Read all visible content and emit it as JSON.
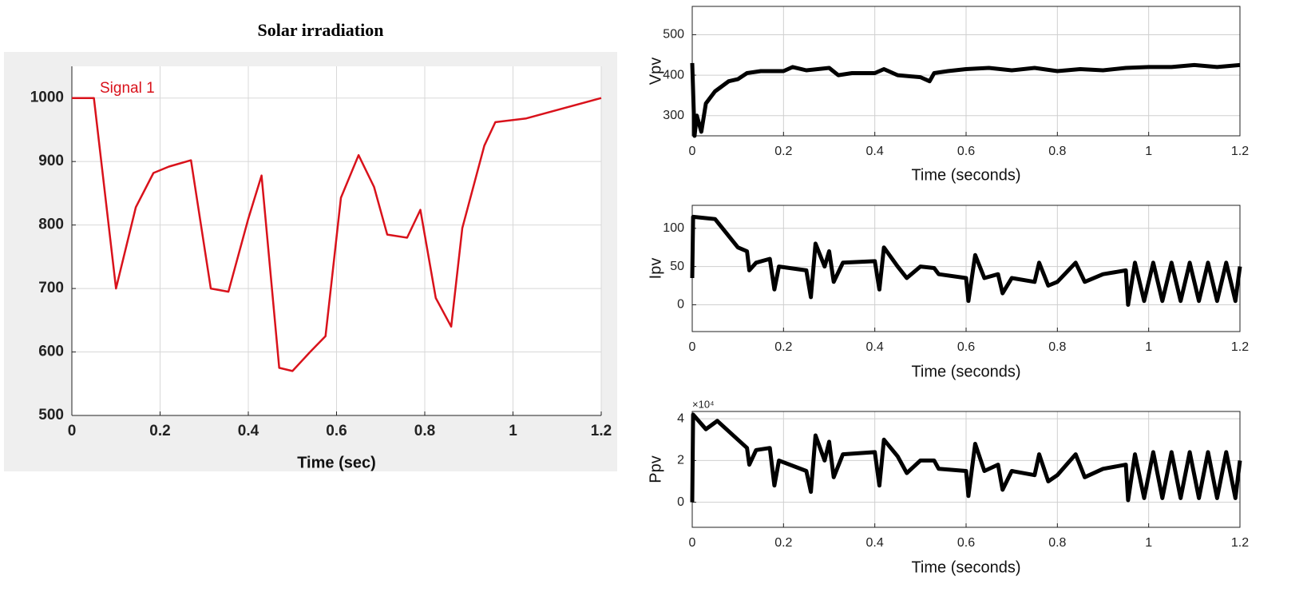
{
  "chart_data": [
    {
      "type": "line",
      "title": "Solar irradiation",
      "xlabel": "Time (sec)",
      "x": [
        0,
        0.05,
        0.1,
        0.145,
        0.185,
        0.22,
        0.27,
        0.315,
        0.355,
        0.4,
        0.43,
        0.47,
        0.5,
        0.54,
        0.575,
        0.61,
        0.65,
        0.685,
        0.715,
        0.76,
        0.79,
        0.825,
        0.86,
        0.885,
        0.935,
        0.96,
        1.03,
        1.2
      ],
      "series": [
        {
          "name": "Signal 1",
          "color": "#d9121b",
          "values": [
            1000,
            1000,
            700,
            828,
            882,
            892,
            902,
            700,
            695,
            810,
            878,
            575,
            570,
            600,
            625,
            843,
            910,
            860,
            785,
            780,
            824,
            685,
            640,
            795,
            925,
            962,
            968,
            1000
          ]
        }
      ],
      "xlim": [
        0,
        1.2
      ],
      "xticks": [
        0,
        0.2,
        0.4,
        0.6,
        0.8,
        1,
        1.2
      ],
      "ylim": [
        500,
        1050
      ],
      "yticks": [
        500,
        600,
        700,
        800,
        900,
        1000
      ],
      "grid": true
    },
    {
      "type": "line",
      "ylabel": "Vpv",
      "xlabel": "Time (seconds)",
      "x": [
        0,
        0.005,
        0.01,
        0.02,
        0.03,
        0.05,
        0.08,
        0.1,
        0.12,
        0.15,
        0.2,
        0.22,
        0.25,
        0.3,
        0.32,
        0.35,
        0.4,
        0.42,
        0.45,
        0.5,
        0.52,
        0.53,
        0.56,
        0.6,
        0.65,
        0.7,
        0.75,
        0.8,
        0.85,
        0.9,
        0.95,
        1.0,
        1.05,
        1.1,
        1.15,
        1.2
      ],
      "series": [
        {
          "color": "#000000",
          "values": [
            430,
            250,
            300,
            260,
            330,
            360,
            385,
            390,
            405,
            410,
            410,
            420,
            412,
            418,
            400,
            405,
            405,
            415,
            400,
            395,
            385,
            405,
            410,
            415,
            418,
            412,
            418,
            410,
            415,
            412,
            418,
            420,
            420,
            425,
            420,
            425
          ]
        }
      ],
      "xlim": [
        0,
        1.2
      ],
      "xticks": [
        0,
        0.2,
        0.4,
        0.6,
        0.8,
        1,
        1.2
      ],
      "ylim": [
        250,
        570
      ],
      "yticks": [
        300,
        400,
        500
      ],
      "grid": true
    },
    {
      "type": "line",
      "ylabel": "Ipv",
      "xlabel": "Time (seconds)",
      "x": [
        0,
        0.002,
        0.05,
        0.1,
        0.12,
        0.125,
        0.14,
        0.17,
        0.18,
        0.19,
        0.25,
        0.26,
        0.27,
        0.29,
        0.3,
        0.31,
        0.33,
        0.4,
        0.41,
        0.42,
        0.45,
        0.47,
        0.5,
        0.53,
        0.54,
        0.6,
        0.605,
        0.62,
        0.64,
        0.67,
        0.68,
        0.7,
        0.75,
        0.76,
        0.78,
        0.8,
        0.84,
        0.86,
        0.9,
        0.95,
        0.955,
        0.97,
        0.99,
        1.01,
        1.03,
        1.05,
        1.07,
        1.09,
        1.11,
        1.13,
        1.15,
        1.17,
        1.19,
        1.2
      ],
      "series": [
        {
          "color": "#000000",
          "values": [
            35,
            115,
            112,
            75,
            70,
            45,
            55,
            60,
            20,
            50,
            45,
            10,
            80,
            50,
            70,
            30,
            55,
            57,
            20,
            75,
            50,
            35,
            50,
            48,
            40,
            35,
            5,
            65,
            35,
            40,
            15,
            35,
            30,
            55,
            25,
            30,
            55,
            30,
            40,
            45,
            0,
            55,
            5,
            55,
            5,
            55,
            5,
            55,
            5,
            55,
            5,
            55,
            5,
            50
          ]
        }
      ],
      "xlim": [
        0,
        1.2
      ],
      "xticks": [
        0,
        0.2,
        0.4,
        0.6,
        0.8,
        1,
        1.2
      ],
      "ylim": [
        -35,
        130
      ],
      "yticks": [
        0,
        50,
        100
      ],
      "grid": true
    },
    {
      "type": "line",
      "ylabel": "Ppv",
      "xlabel": "Time (seconds)",
      "y_multiplier": "×10⁴",
      "x": [
        0,
        0.002,
        0.03,
        0.055,
        0.1,
        0.12,
        0.125,
        0.14,
        0.17,
        0.18,
        0.19,
        0.25,
        0.26,
        0.27,
        0.29,
        0.3,
        0.31,
        0.33,
        0.4,
        0.41,
        0.42,
        0.45,
        0.47,
        0.5,
        0.53,
        0.54,
        0.6,
        0.605,
        0.62,
        0.64,
        0.67,
        0.68,
        0.7,
        0.75,
        0.76,
        0.78,
        0.8,
        0.84,
        0.86,
        0.9,
        0.95,
        0.955,
        0.97,
        0.99,
        1.01,
        1.03,
        1.05,
        1.07,
        1.09,
        1.11,
        1.13,
        1.15,
        1.17,
        1.19,
        1.2
      ],
      "series": [
        {
          "color": "#000000",
          "values": [
            0,
            4.2,
            3.5,
            3.9,
            3.0,
            2.6,
            1.8,
            2.5,
            2.6,
            0.8,
            2.0,
            1.5,
            0.5,
            3.2,
            2.0,
            2.9,
            1.2,
            2.3,
            2.4,
            0.8,
            3.0,
            2.2,
            1.4,
            2.0,
            2.0,
            1.6,
            1.5,
            0.3,
            2.8,
            1.5,
            1.8,
            0.6,
            1.5,
            1.3,
            2.3,
            1.0,
            1.3,
            2.3,
            1.2,
            1.6,
            1.8,
            0.1,
            2.3,
            0.2,
            2.4,
            0.2,
            2.4,
            0.2,
            2.4,
            0.2,
            2.4,
            0.2,
            2.4,
            0.2,
            2.0
          ]
        }
      ],
      "xlim": [
        0,
        1.2
      ],
      "xticks": [
        0,
        0.2,
        0.4,
        0.6,
        0.8,
        1,
        1.2
      ],
      "ylim": [
        -1.2,
        4.35
      ],
      "yticks": [
        0,
        2,
        4
      ],
      "grid": true
    }
  ]
}
